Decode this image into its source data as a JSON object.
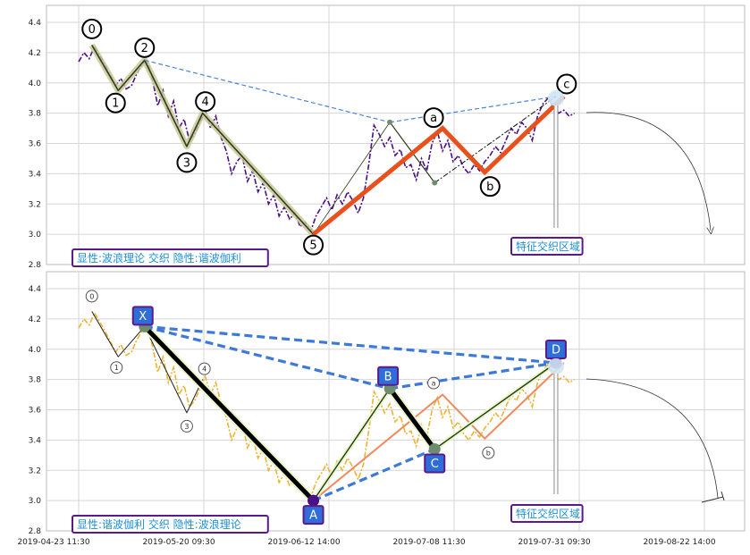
{
  "chart_data": [
    {
      "type": "line",
      "panel": "top",
      "ylim": [
        2.8,
        4.5
      ],
      "y_ticks": [
        "4.4",
        "4.2",
        "4.0",
        "3.8",
        "3.6",
        "3.4",
        "3.2",
        "3.0",
        "2.8"
      ],
      "grid": true,
      "price_series": [
        [
          0,
          4.14
        ],
        [
          1,
          4.2
        ],
        [
          2,
          4.16
        ],
        [
          3,
          4.24
        ],
        [
          4,
          4.18
        ],
        [
          5,
          4.12
        ],
        [
          6,
          4.05
        ],
        [
          7,
          3.98
        ],
        [
          8,
          4.03
        ],
        [
          9,
          3.96
        ],
        [
          10,
          3.98
        ],
        [
          11,
          4.06
        ],
        [
          12,
          4.12
        ],
        [
          13,
          4.15
        ],
        [
          14,
          4.02
        ],
        [
          15,
          3.85
        ],
        [
          16,
          3.95
        ],
        [
          17,
          3.78
        ],
        [
          18,
          3.88
        ],
        [
          19,
          3.7
        ],
        [
          20,
          3.76
        ],
        [
          21,
          3.62
        ],
        [
          22,
          3.66
        ],
        [
          23,
          3.74
        ],
        [
          24,
          3.82
        ],
        [
          25,
          3.7
        ],
        [
          26,
          3.78
        ],
        [
          27,
          3.64
        ],
        [
          28,
          3.55
        ],
        [
          29,
          3.4
        ],
        [
          30,
          3.48
        ],
        [
          31,
          3.52
        ],
        [
          32,
          3.35
        ],
        [
          33,
          3.42
        ],
        [
          34,
          3.28
        ],
        [
          35,
          3.34
        ],
        [
          36,
          3.2
        ],
        [
          37,
          3.26
        ],
        [
          38,
          3.12
        ],
        [
          39,
          3.18
        ],
        [
          40,
          3.1
        ],
        [
          41,
          3.14
        ],
        [
          42,
          3.05
        ],
        [
          43,
          3.08
        ],
        [
          44,
          3.02
        ],
        [
          45,
          3.12
        ],
        [
          46,
          3.18
        ],
        [
          47,
          3.24
        ],
        [
          48,
          3.16
        ],
        [
          49,
          3.26
        ],
        [
          50,
          3.2
        ],
        [
          51,
          3.28
        ],
        [
          52,
          3.22
        ],
        [
          53,
          3.14
        ],
        [
          54,
          3.24
        ],
        [
          55,
          3.46
        ],
        [
          56,
          3.72
        ],
        [
          57,
          3.66
        ],
        [
          58,
          3.58
        ],
        [
          59,
          3.64
        ],
        [
          60,
          3.52
        ],
        [
          61,
          3.56
        ],
        [
          62,
          3.44
        ],
        [
          63,
          3.46
        ],
        [
          64,
          3.36
        ],
        [
          65,
          3.5
        ],
        [
          66,
          3.42
        ],
        [
          67,
          3.6
        ],
        [
          68,
          3.68
        ],
        [
          69,
          3.55
        ],
        [
          70,
          3.62
        ],
        [
          71,
          3.48
        ],
        [
          72,
          3.52
        ],
        [
          73,
          3.44
        ],
        [
          74,
          3.4
        ],
        [
          75,
          3.46
        ],
        [
          76,
          3.42
        ],
        [
          77,
          3.48
        ],
        [
          78,
          3.52
        ],
        [
          79,
          3.58
        ],
        [
          80,
          3.54
        ],
        [
          81,
          3.62
        ],
        [
          82,
          3.7
        ],
        [
          83,
          3.66
        ],
        [
          84,
          3.74
        ],
        [
          85,
          3.7
        ],
        [
          86,
          3.62
        ],
        [
          87,
          3.78
        ],
        [
          88,
          3.86
        ],
        [
          89,
          3.9
        ],
        [
          90,
          3.84
        ],
        [
          91,
          3.8
        ],
        [
          92,
          3.82
        ],
        [
          93,
          3.78
        ],
        [
          94,
          3.8
        ]
      ],
      "wave_points": [
        {
          "label": "0",
          "x": 2.5,
          "y": 4.25
        },
        {
          "label": "1",
          "x": 7.5,
          "y": 3.95
        },
        {
          "label": "2",
          "x": 12.5,
          "y": 4.15
        },
        {
          "label": "3",
          "x": 20.5,
          "y": 3.58
        },
        {
          "label": "4",
          "x": 23.5,
          "y": 3.8
        },
        {
          "label": "5",
          "x": 44.5,
          "y": 3.0
        }
      ],
      "abc_points": [
        {
          "label": "a",
          "x": 69,
          "y": 3.7
        },
        {
          "label": "b",
          "x": 77,
          "y": 3.41
        },
        {
          "label": "c",
          "x": 92,
          "y": 3.91
        }
      ],
      "harmonic_points": [
        {
          "label": "X",
          "x": 12.5,
          "y": 4.15
        },
        {
          "label": "A",
          "x": 44.5,
          "y": 3.0
        },
        {
          "label": "B",
          "x": 59,
          "y": 3.74
        },
        {
          "label": "C",
          "x": 67.5,
          "y": 3.34
        },
        {
          "label": "D",
          "x": 90.5,
          "y": 3.91
        }
      ],
      "annotation": "显性:波浪理论 交织 隐性:谐波伽利",
      "zone_label": "特征交织区域"
    },
    {
      "type": "line",
      "panel": "bottom",
      "ylim": [
        2.8,
        4.5
      ],
      "y_ticks": [
        "4.4",
        "4.2",
        "4.0",
        "3.8",
        "3.6",
        "3.4",
        "3.2",
        "3.0",
        "2.8"
      ],
      "x_ticks": [
        "2019-04-23 11:30",
        "2019-05-20 09:30",
        "2019-06-12 14:00",
        "2019-07-08 11:30",
        "2019-07-31 09:30",
        "2019-08-22 14:00"
      ],
      "grid": true,
      "annotation": "显性:谐波伽利 交织 隐性:波浪理论",
      "zone_label": "特征交织区域"
    }
  ]
}
